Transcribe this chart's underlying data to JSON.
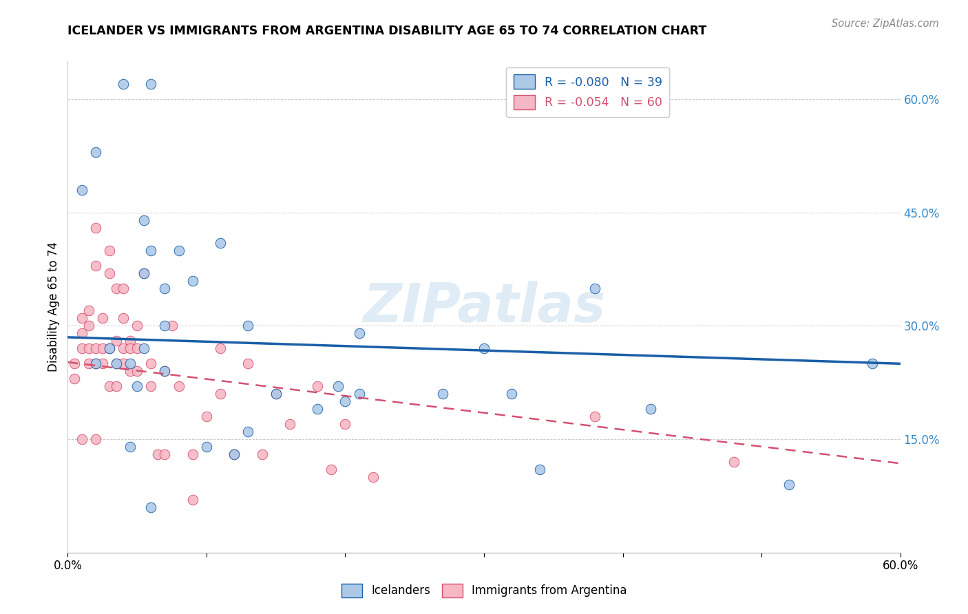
{
  "title": "ICELANDER VS IMMIGRANTS FROM ARGENTINA DISABILITY AGE 65 TO 74 CORRELATION CHART",
  "source": "Source: ZipAtlas.com",
  "ylabel": "Disability Age 65 to 74",
  "xlim": [
    0.0,
    0.6
  ],
  "ylim": [
    0.0,
    0.65
  ],
  "yticks": [
    0.15,
    0.3,
    0.45,
    0.6
  ],
  "ytick_labels": [
    "15.0%",
    "30.0%",
    "45.0%",
    "60.0%"
  ],
  "xtick_positions": [
    0.0,
    0.1,
    0.2,
    0.3,
    0.4,
    0.5,
    0.6
  ],
  "legend_blue_R": "R = -0.080",
  "legend_blue_N": "N = 39",
  "legend_pink_R": "R = -0.054",
  "legend_pink_N": "N = 60",
  "legend_label_blue": "Icelanders",
  "legend_label_pink": "Immigrants from Argentina",
  "blue_color": "#adc9e8",
  "pink_color": "#f5b8c4",
  "blue_line_color": "#1a5fa8",
  "pink_line_color": "#d45070",
  "watermark": "ZIPatlas",
  "blue_scatter_x": [
    0.02,
    0.04,
    0.06,
    0.01,
    0.055,
    0.08,
    0.06,
    0.055,
    0.09,
    0.07,
    0.07,
    0.11,
    0.13,
    0.15,
    0.195,
    0.18,
    0.21,
    0.27,
    0.3,
    0.32,
    0.38,
    0.42,
    0.58,
    0.055,
    0.045,
    0.03,
    0.02,
    0.035,
    0.07,
    0.05,
    0.1,
    0.12,
    0.21,
    0.2,
    0.34,
    0.52,
    0.13,
    0.06,
    0.045
  ],
  "blue_scatter_y": [
    0.53,
    0.62,
    0.62,
    0.48,
    0.44,
    0.4,
    0.4,
    0.37,
    0.36,
    0.35,
    0.3,
    0.41,
    0.3,
    0.21,
    0.22,
    0.19,
    0.29,
    0.21,
    0.27,
    0.21,
    0.35,
    0.19,
    0.25,
    0.27,
    0.25,
    0.27,
    0.25,
    0.25,
    0.24,
    0.22,
    0.14,
    0.13,
    0.21,
    0.2,
    0.11,
    0.09,
    0.16,
    0.06,
    0.14
  ],
  "pink_scatter_x": [
    0.005,
    0.005,
    0.01,
    0.01,
    0.01,
    0.01,
    0.015,
    0.015,
    0.015,
    0.015,
    0.02,
    0.02,
    0.02,
    0.02,
    0.02,
    0.025,
    0.025,
    0.025,
    0.03,
    0.03,
    0.03,
    0.03,
    0.035,
    0.035,
    0.035,
    0.035,
    0.04,
    0.04,
    0.04,
    0.04,
    0.045,
    0.045,
    0.045,
    0.05,
    0.05,
    0.05,
    0.055,
    0.06,
    0.06,
    0.065,
    0.07,
    0.07,
    0.075,
    0.08,
    0.09,
    0.09,
    0.1,
    0.11,
    0.11,
    0.12,
    0.13,
    0.14,
    0.15,
    0.16,
    0.18,
    0.19,
    0.2,
    0.22,
    0.38,
    0.48
  ],
  "pink_scatter_y": [
    0.25,
    0.23,
    0.31,
    0.29,
    0.27,
    0.15,
    0.32,
    0.3,
    0.27,
    0.25,
    0.43,
    0.38,
    0.27,
    0.25,
    0.15,
    0.31,
    0.27,
    0.25,
    0.4,
    0.37,
    0.27,
    0.22,
    0.35,
    0.28,
    0.25,
    0.22,
    0.35,
    0.31,
    0.27,
    0.25,
    0.28,
    0.27,
    0.24,
    0.3,
    0.27,
    0.24,
    0.37,
    0.25,
    0.22,
    0.13,
    0.13,
    0.24,
    0.3,
    0.22,
    0.13,
    0.07,
    0.18,
    0.27,
    0.21,
    0.13,
    0.25,
    0.13,
    0.21,
    0.17,
    0.22,
    0.11,
    0.17,
    0.1,
    0.18,
    0.12
  ],
  "blue_line_y_start": 0.285,
  "blue_line_y_end": 0.25,
  "pink_line_y_start": 0.252,
  "pink_line_y_end": 0.118
}
